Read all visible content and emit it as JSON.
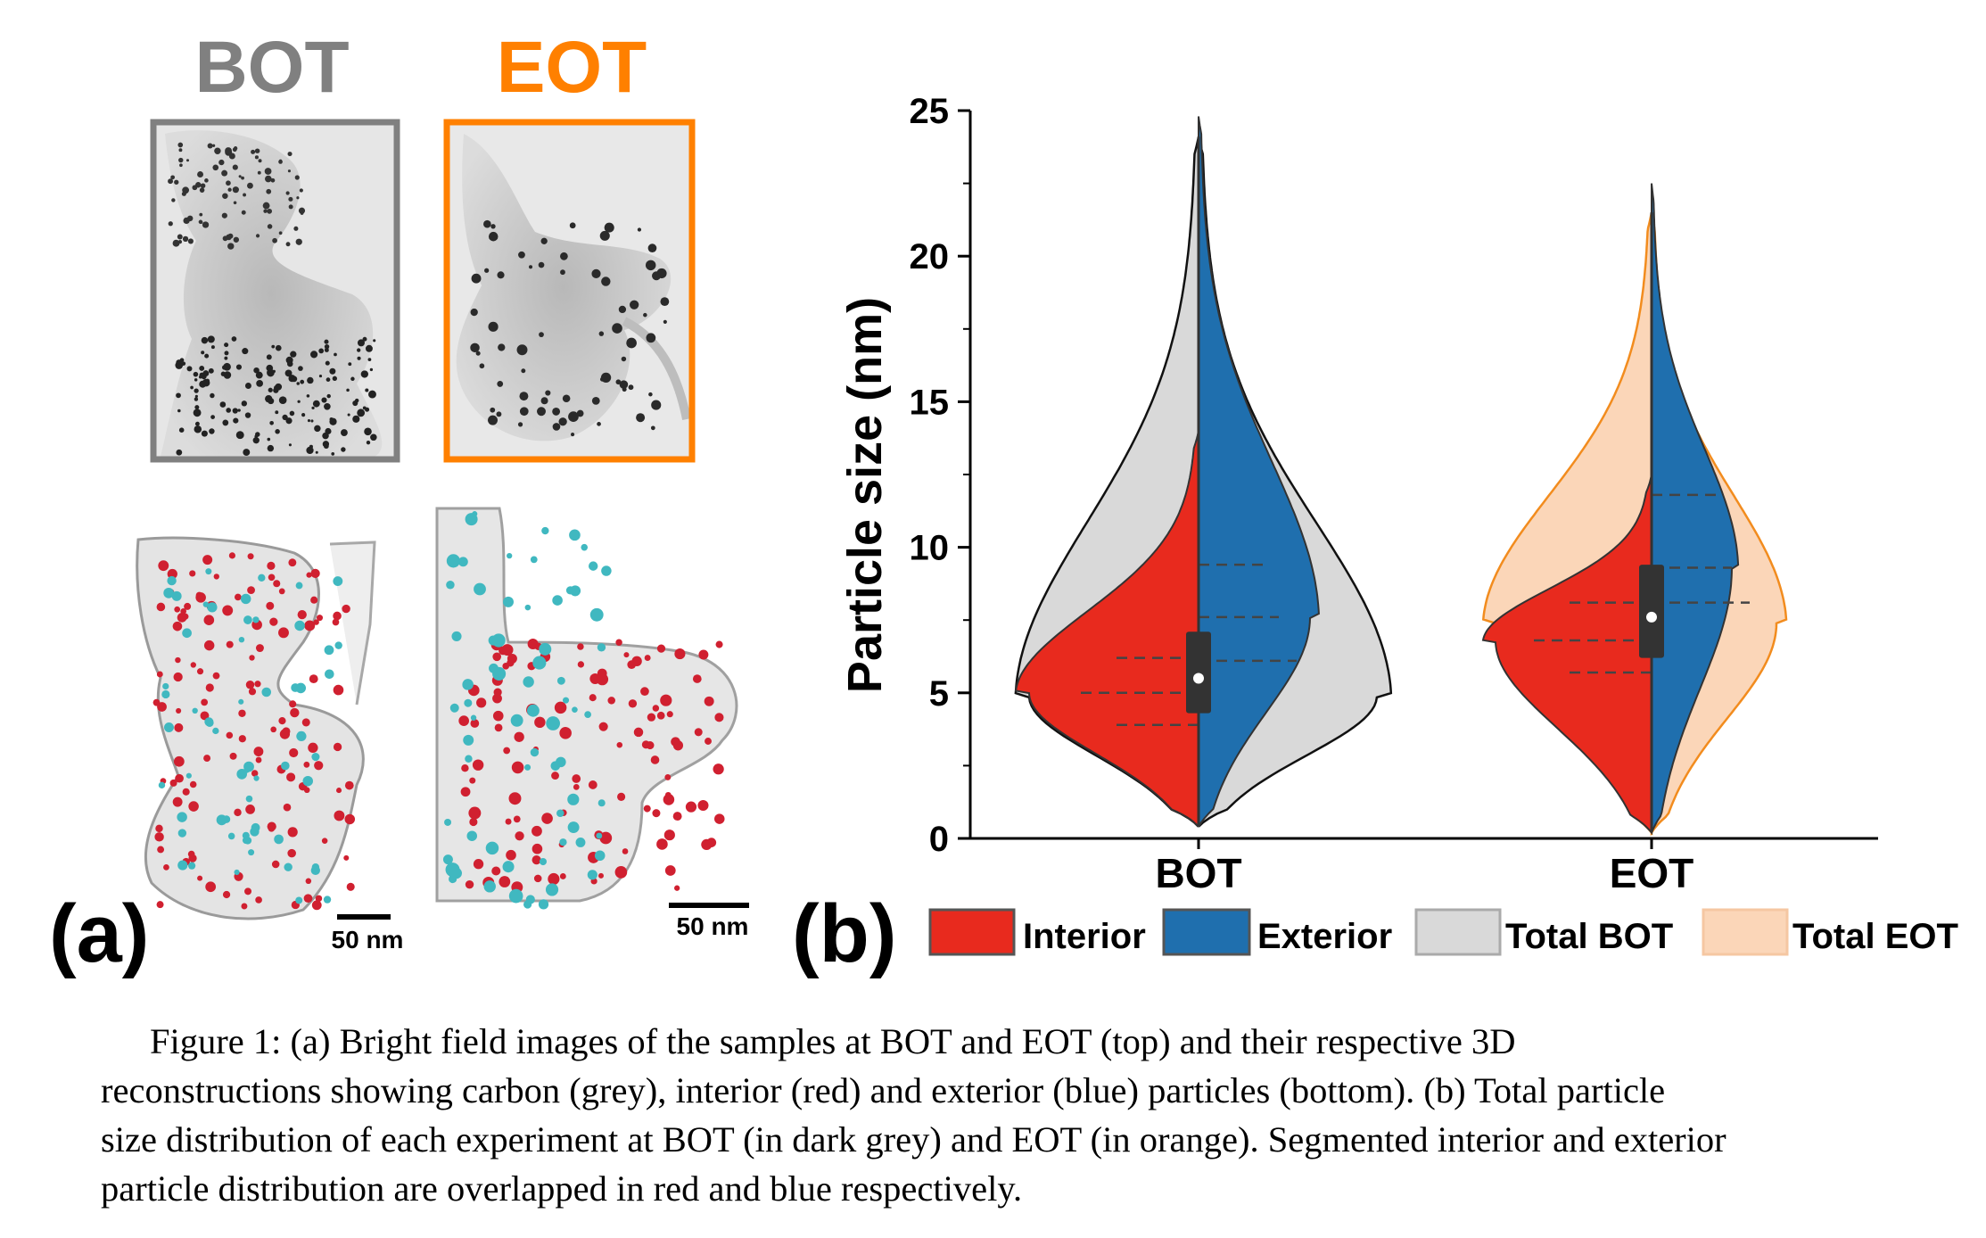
{
  "panel_a": {
    "label": "(a)",
    "title_left": "BOT",
    "title_right": "EOT",
    "scale_left": "50 nm",
    "scale_right": "50 nm",
    "colors": {
      "bot": "#808080",
      "eot": "#ff8000",
      "interior": "#d02030",
      "exterior": "#40b8c0"
    }
  },
  "panel_b": {
    "label": "(b)",
    "legend": [
      "Interior",
      "Exterior",
      "Total BOT",
      "Total EOT"
    ],
    "colors": {
      "interior": "#e82a1e",
      "exterior": "#1f6fae",
      "total_bot": "#d9d9d9",
      "total_eot": "#fbd6b8",
      "box": "#333333"
    }
  },
  "chart_data": {
    "type": "violin",
    "ylabel": "Particle size (nm)",
    "xlabel": "",
    "categories": [
      "BOT",
      "EOT"
    ],
    "ylim": [
      0,
      25
    ],
    "yticks": [
      0,
      5,
      10,
      15,
      20,
      25
    ],
    "split": true,
    "series": [
      {
        "name": "Interior",
        "side": "left",
        "groups": [
          {
            "category": "BOT",
            "min": 0.4,
            "max": 14.0,
            "mode": 5.0,
            "q1": 3.9,
            "median": 5.0,
            "q3": 6.2
          },
          {
            "category": "EOT",
            "min": 0.2,
            "max": 12.5,
            "mode": 6.8,
            "q1": 5.7,
            "median": 6.8,
            "q3": 8.1
          }
        ]
      },
      {
        "name": "Exterior",
        "side": "right",
        "groups": [
          {
            "category": "BOT",
            "min": 0.4,
            "max": 24.8,
            "mode": 7.6,
            "q1": 6.1,
            "median": 7.6,
            "q3": 9.4
          },
          {
            "category": "EOT",
            "min": 0.2,
            "max": 22.5,
            "mode": 9.3,
            "q1": 8.1,
            "median": 9.3,
            "q3": 11.8
          }
        ]
      },
      {
        "name": "Total BOT",
        "category": "BOT",
        "min": 0.4,
        "max": 24.1,
        "mode": 4.9,
        "median": 5.5,
        "box_q1": 4.3,
        "box_q3": 7.1
      },
      {
        "name": "Total EOT",
        "category": "EOT",
        "min": 0.2,
        "max": 21.5,
        "mode": 7.4,
        "median": 7.6,
        "box_q1": 6.2,
        "box_q3": 9.4
      }
    ]
  },
  "caption": {
    "line1": "Figure 1: (a) Bright field images of the samples at BOT and EOT (top) and their respective 3D",
    "line2": "reconstructions showing carbon (grey), interior (red) and exterior (blue) particles (bottom). (b)  Total particle",
    "line3": "size distribution of each experiment at BOT (in dark grey) and EOT (in orange). Segmented interior and exterior",
    "line4": "particle distribution are overlapped in red and blue respectively."
  }
}
